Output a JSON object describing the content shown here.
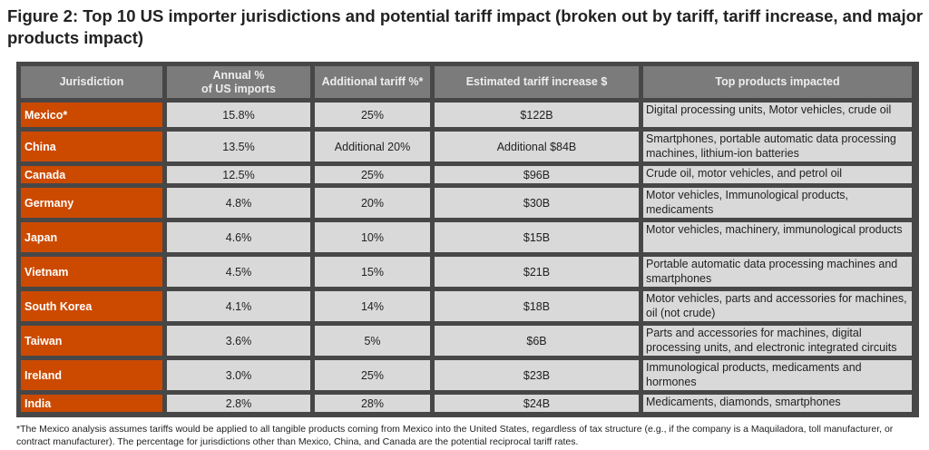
{
  "title": "Figure 2: Top 10 US importer jurisdictions and potential tariff impact (broken out by tariff, tariff increase, and major products impact)",
  "headers": [
    "Jurisdiction",
    "Annual %\nof US imports",
    "Additional tariff %*",
    "Estimated tariff increase $",
    "Top products impacted"
  ],
  "rows": [
    [
      "Mexico*",
      "15.8%",
      "25%",
      "$122B",
      "Digital processing units, Motor vehicles, crude oil"
    ],
    [
      "China",
      "13.5%",
      "Additional 20%",
      "Additional $84B",
      "Smartphones, portable automatic data processing machines, lithium-ion batteries"
    ],
    [
      "Canada",
      "12.5%",
      "25%",
      "$96B",
      "Crude oil, motor vehicles, and petrol oil"
    ],
    [
      "Germany",
      "4.8%",
      "20%",
      "$30B",
      "Motor vehicles, Immunological products, medicaments"
    ],
    [
      "Japan",
      "4.6%",
      "10%",
      "$15B",
      "Motor vehicles, machinery, immunological products"
    ],
    [
      "Vietnam",
      "4.5%",
      "15%",
      "$21B",
      "Portable automatic data processing machines and smartphones"
    ],
    [
      "South Korea",
      "4.1%",
      "14%",
      "$18B",
      "Motor vehicles, parts and accessories for machines, oil (not crude)"
    ],
    [
      "Taiwan",
      "3.6%",
      "5%",
      "$6B",
      "Parts and accessories for machines, digital processing units, and electronic integrated circuits"
    ],
    [
      "Ireland",
      "3.0%",
      "25%",
      "$23B",
      "Immunological products, medicaments and hormones"
    ],
    [
      "India",
      "2.8%",
      "28%",
      "$24B",
      "Medicaments, diamonds, smartphones"
    ]
  ],
  "footnote": "*The Mexico analysis assumes tariffs would be applied to all tangible products coming from Mexico into the United States, regardless of tax structure (e.g., if the company is a Maquiladora, toll manufacturer, or contract manufacturer). The percentage for jurisdictions other than Mexico, China, and Canada are the potential reciprocal tariff rates.",
  "colors": {
    "jurisdiction_bg": "#cc4a00",
    "header_bg": "#7b7b7b",
    "cell_bg": "#d9d9d9",
    "frame": "#474747"
  }
}
